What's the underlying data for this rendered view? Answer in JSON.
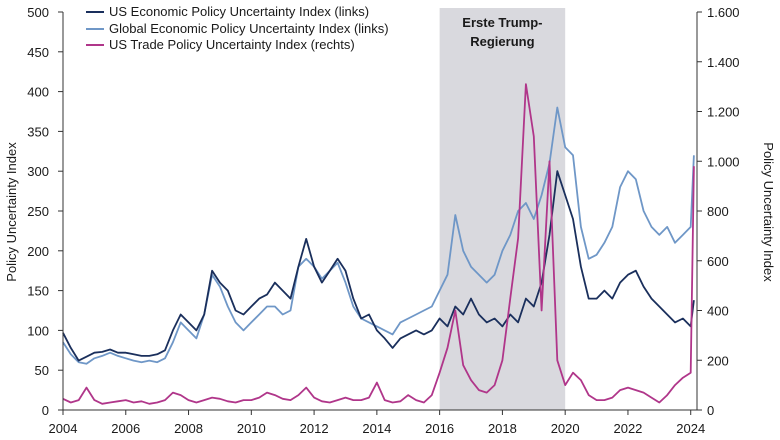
{
  "chart_data": {
    "type": "line",
    "title": "",
    "xlabel": "",
    "ylabel_left": "Policy Uncertainty Index",
    "ylabel_right": "Policy Uncertainty Index",
    "xlim": [
      2004,
      2024.2
    ],
    "ylim_left": [
      0,
      500
    ],
    "ylim_right": [
      0,
      1600
    ],
    "x_ticks": [
      2004,
      2006,
      2008,
      2010,
      2012,
      2014,
      2016,
      2018,
      2020,
      2022,
      2024
    ],
    "y_left_ticks": [
      0,
      50,
      100,
      150,
      200,
      250,
      300,
      350,
      400,
      450,
      500
    ],
    "y_right_ticks": [
      0,
      200,
      400,
      600,
      800,
      1000,
      1200,
      1400,
      1600
    ],
    "y_right_tick_labels": [
      "0",
      "200",
      "400",
      "600",
      "800",
      "1.000",
      "1.200",
      "1.400",
      "1.600"
    ],
    "grid": false,
    "legend_position": "top-left",
    "shaded_region": {
      "x_start": 2016.0,
      "x_end": 2020.0,
      "label_line1": "Erste Trump-",
      "label_line2": "Regierung",
      "color": "#d9d9de"
    },
    "series": [
      {
        "name": "US Economic Policy Uncertainty Index (links)",
        "axis": "left",
        "color": "#1a2f5c",
        "points": [
          [
            2004.0,
            97
          ],
          [
            2004.25,
            78
          ],
          [
            2004.5,
            62
          ],
          [
            2004.75,
            67
          ],
          [
            2005.0,
            72
          ],
          [
            2005.25,
            73
          ],
          [
            2005.5,
            76
          ],
          [
            2005.75,
            72
          ],
          [
            2006.0,
            72
          ],
          [
            2006.25,
            70
          ],
          [
            2006.5,
            68
          ],
          [
            2006.75,
            68
          ],
          [
            2007.0,
            70
          ],
          [
            2007.25,
            75
          ],
          [
            2007.5,
            100
          ],
          [
            2007.75,
            120
          ],
          [
            2008.0,
            110
          ],
          [
            2008.25,
            100
          ],
          [
            2008.5,
            120
          ],
          [
            2008.75,
            175
          ],
          [
            2009.0,
            160
          ],
          [
            2009.25,
            150
          ],
          [
            2009.5,
            125
          ],
          [
            2009.75,
            120
          ],
          [
            2010.0,
            130
          ],
          [
            2010.25,
            140
          ],
          [
            2010.5,
            145
          ],
          [
            2010.75,
            160
          ],
          [
            2011.0,
            150
          ],
          [
            2011.25,
            140
          ],
          [
            2011.5,
            180
          ],
          [
            2011.75,
            215
          ],
          [
            2012.0,
            180
          ],
          [
            2012.25,
            160
          ],
          [
            2012.5,
            175
          ],
          [
            2012.75,
            190
          ],
          [
            2013.0,
            175
          ],
          [
            2013.25,
            140
          ],
          [
            2013.5,
            115
          ],
          [
            2013.75,
            120
          ],
          [
            2014.0,
            100
          ],
          [
            2014.25,
            90
          ],
          [
            2014.5,
            78
          ],
          [
            2014.75,
            90
          ],
          [
            2015.0,
            95
          ],
          [
            2015.25,
            100
          ],
          [
            2015.5,
            95
          ],
          [
            2015.75,
            100
          ],
          [
            2016.0,
            115
          ],
          [
            2016.25,
            105
          ],
          [
            2016.5,
            130
          ],
          [
            2016.75,
            120
          ],
          [
            2017.0,
            140
          ],
          [
            2017.25,
            120
          ],
          [
            2017.5,
            110
          ],
          [
            2017.75,
            115
          ],
          [
            2018.0,
            105
          ],
          [
            2018.25,
            120
          ],
          [
            2018.5,
            110
          ],
          [
            2018.75,
            140
          ],
          [
            2019.0,
            130
          ],
          [
            2019.25,
            160
          ],
          [
            2019.5,
            220
          ],
          [
            2019.75,
            300
          ],
          [
            2020.0,
            270
          ],
          [
            2020.25,
            240
          ],
          [
            2020.5,
            180
          ],
          [
            2020.75,
            140
          ],
          [
            2021.0,
            140
          ],
          [
            2021.25,
            150
          ],
          [
            2021.5,
            140
          ],
          [
            2021.75,
            160
          ],
          [
            2022.0,
            170
          ],
          [
            2022.25,
            175
          ],
          [
            2022.5,
            155
          ],
          [
            2022.75,
            140
          ],
          [
            2023.0,
            130
          ],
          [
            2023.25,
            120
          ],
          [
            2023.5,
            110
          ],
          [
            2023.75,
            115
          ],
          [
            2024.0,
            105
          ],
          [
            2024.1,
            138
          ]
        ]
      },
      {
        "name": "Global Economic Policy Uncertainty Index (links)",
        "axis": "left",
        "color": "#6f97c7",
        "points": [
          [
            2004.0,
            85
          ],
          [
            2004.25,
            70
          ],
          [
            2004.5,
            60
          ],
          [
            2004.75,
            58
          ],
          [
            2005.0,
            65
          ],
          [
            2005.25,
            68
          ],
          [
            2005.5,
            72
          ],
          [
            2005.75,
            68
          ],
          [
            2006.0,
            65
          ],
          [
            2006.25,
            62
          ],
          [
            2006.5,
            60
          ],
          [
            2006.75,
            62
          ],
          [
            2007.0,
            60
          ],
          [
            2007.25,
            65
          ],
          [
            2007.5,
            85
          ],
          [
            2007.75,
            110
          ],
          [
            2008.0,
            100
          ],
          [
            2008.25,
            90
          ],
          [
            2008.5,
            120
          ],
          [
            2008.75,
            170
          ],
          [
            2009.0,
            155
          ],
          [
            2009.25,
            130
          ],
          [
            2009.5,
            110
          ],
          [
            2009.75,
            100
          ],
          [
            2010.0,
            110
          ],
          [
            2010.25,
            120
          ],
          [
            2010.5,
            130
          ],
          [
            2010.75,
            130
          ],
          [
            2011.0,
            120
          ],
          [
            2011.25,
            125
          ],
          [
            2011.5,
            180
          ],
          [
            2011.75,
            190
          ],
          [
            2012.0,
            180
          ],
          [
            2012.25,
            165
          ],
          [
            2012.5,
            175
          ],
          [
            2012.75,
            185
          ],
          [
            2013.0,
            160
          ],
          [
            2013.25,
            130
          ],
          [
            2013.5,
            115
          ],
          [
            2013.75,
            110
          ],
          [
            2014.0,
            105
          ],
          [
            2014.25,
            100
          ],
          [
            2014.5,
            95
          ],
          [
            2014.75,
            110
          ],
          [
            2015.0,
            115
          ],
          [
            2015.25,
            120
          ],
          [
            2015.5,
            125
          ],
          [
            2015.75,
            130
          ],
          [
            2016.0,
            150
          ],
          [
            2016.25,
            170
          ],
          [
            2016.5,
            245
          ],
          [
            2016.75,
            200
          ],
          [
            2017.0,
            180
          ],
          [
            2017.25,
            170
          ],
          [
            2017.5,
            160
          ],
          [
            2017.75,
            170
          ],
          [
            2018.0,
            200
          ],
          [
            2018.25,
            220
          ],
          [
            2018.5,
            250
          ],
          [
            2018.75,
            260
          ],
          [
            2019.0,
            240
          ],
          [
            2019.25,
            270
          ],
          [
            2019.5,
            310
          ],
          [
            2019.75,
            380
          ],
          [
            2020.0,
            330
          ],
          [
            2020.25,
            320
          ],
          [
            2020.5,
            230
          ],
          [
            2020.75,
            190
          ],
          [
            2021.0,
            195
          ],
          [
            2021.25,
            210
          ],
          [
            2021.5,
            230
          ],
          [
            2021.75,
            280
          ],
          [
            2022.0,
            300
          ],
          [
            2022.25,
            290
          ],
          [
            2022.5,
            250
          ],
          [
            2022.75,
            230
          ],
          [
            2023.0,
            220
          ],
          [
            2023.25,
            230
          ],
          [
            2023.5,
            210
          ],
          [
            2023.75,
            220
          ],
          [
            2024.0,
            230
          ],
          [
            2024.1,
            320
          ]
        ]
      },
      {
        "name": "US Trade Policy Uncertainty Index (rechts)",
        "axis": "right",
        "color": "#b0368a",
        "points": [
          [
            2004.0,
            45
          ],
          [
            2004.25,
            30
          ],
          [
            2004.5,
            40
          ],
          [
            2004.75,
            90
          ],
          [
            2005.0,
            40
          ],
          [
            2005.25,
            25
          ],
          [
            2005.5,
            30
          ],
          [
            2005.75,
            35
          ],
          [
            2006.0,
            40
          ],
          [
            2006.25,
            30
          ],
          [
            2006.5,
            35
          ],
          [
            2006.75,
            25
          ],
          [
            2007.0,
            30
          ],
          [
            2007.25,
            40
          ],
          [
            2007.5,
            70
          ],
          [
            2007.75,
            60
          ],
          [
            2008.0,
            40
          ],
          [
            2008.25,
            30
          ],
          [
            2008.5,
            40
          ],
          [
            2008.75,
            50
          ],
          [
            2009.0,
            45
          ],
          [
            2009.25,
            35
          ],
          [
            2009.5,
            30
          ],
          [
            2009.75,
            40
          ],
          [
            2010.0,
            40
          ],
          [
            2010.25,
            50
          ],
          [
            2010.5,
            70
          ],
          [
            2010.75,
            60
          ],
          [
            2011.0,
            45
          ],
          [
            2011.25,
            40
          ],
          [
            2011.5,
            60
          ],
          [
            2011.75,
            90
          ],
          [
            2012.0,
            50
          ],
          [
            2012.25,
            35
          ],
          [
            2012.5,
            30
          ],
          [
            2012.75,
            40
          ],
          [
            2013.0,
            50
          ],
          [
            2013.25,
            40
          ],
          [
            2013.5,
            40
          ],
          [
            2013.75,
            50
          ],
          [
            2014.0,
            110
          ],
          [
            2014.25,
            40
          ],
          [
            2014.5,
            30
          ],
          [
            2014.75,
            35
          ],
          [
            2015.0,
            60
          ],
          [
            2015.25,
            40
          ],
          [
            2015.5,
            30
          ],
          [
            2015.75,
            60
          ],
          [
            2016.0,
            150
          ],
          [
            2016.25,
            250
          ],
          [
            2016.5,
            400
          ],
          [
            2016.75,
            180
          ],
          [
            2017.0,
            120
          ],
          [
            2017.25,
            80
          ],
          [
            2017.5,
            70
          ],
          [
            2017.75,
            100
          ],
          [
            2018.0,
            200
          ],
          [
            2018.25,
            450
          ],
          [
            2018.5,
            690
          ],
          [
            2018.75,
            1310
          ],
          [
            2019.0,
            1100
          ],
          [
            2019.25,
            400
          ],
          [
            2019.5,
            1000
          ],
          [
            2019.75,
            200
          ],
          [
            2020.0,
            100
          ],
          [
            2020.25,
            150
          ],
          [
            2020.5,
            120
          ],
          [
            2020.75,
            60
          ],
          [
            2021.0,
            40
          ],
          [
            2021.25,
            40
          ],
          [
            2021.5,
            50
          ],
          [
            2021.75,
            80
          ],
          [
            2022.0,
            90
          ],
          [
            2022.25,
            80
          ],
          [
            2022.5,
            70
          ],
          [
            2022.75,
            50
          ],
          [
            2023.0,
            30
          ],
          [
            2023.25,
            60
          ],
          [
            2023.5,
            100
          ],
          [
            2023.75,
            130
          ],
          [
            2024.0,
            150
          ],
          [
            2024.1,
            980
          ]
        ]
      }
    ]
  }
}
